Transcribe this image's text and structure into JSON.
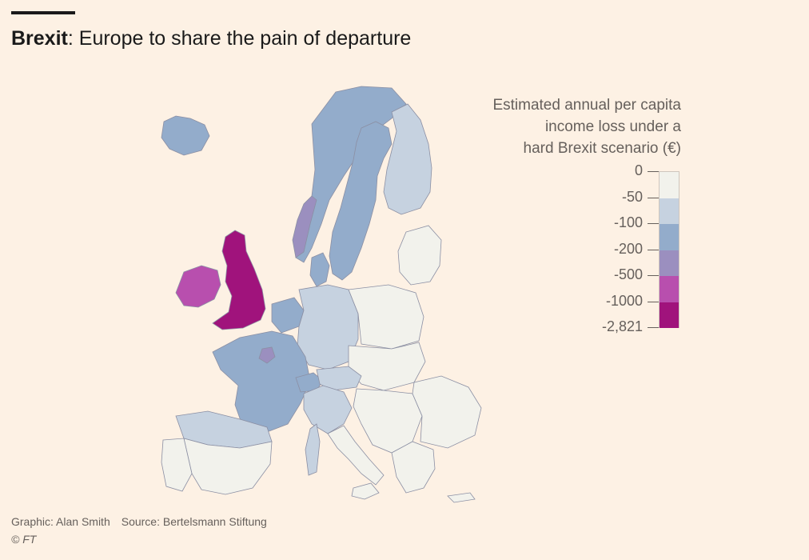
{
  "header": {
    "title_bold": "Brexit",
    "title_rest": ": Europe to share the pain of departure"
  },
  "legend": {
    "title_lines": [
      "Estimated annual per capita",
      "income loss under a",
      "hard Brexit scenario (€)"
    ],
    "breaks": [
      "0",
      "-50",
      "-100",
      "-200",
      "-500",
      "-1000",
      "-2,821"
    ],
    "colors": [
      "#f2f2ec",
      "#c6d2e0",
      "#93accb",
      "#9b8fbf",
      "#b84fae",
      "#a0137c"
    ]
  },
  "footer": {
    "graphic": "Graphic: Alan Smith",
    "source": "Source: Bertelsmann Stiftung",
    "copyright": "© FT"
  },
  "regions": [
    {
      "name": "Iceland",
      "cls": 2
    },
    {
      "name": "Ireland",
      "cls": 4
    },
    {
      "name": "United Kingdom",
      "cls": 5
    },
    {
      "name": "Norway",
      "cls": 2
    },
    {
      "name": "Norway west coast",
      "cls": 3
    },
    {
      "name": "Sweden",
      "cls": 2
    },
    {
      "name": "Finland",
      "cls": 1
    },
    {
      "name": "Denmark",
      "cls": 2
    },
    {
      "name": "Estonia / Latvia / Lithuania",
      "cls": 0
    },
    {
      "name": "Poland",
      "cls": 0
    },
    {
      "name": "Germany",
      "cls": 1
    },
    {
      "name": "Netherlands / Belgium",
      "cls": 2
    },
    {
      "name": "France",
      "cls": 2
    },
    {
      "name": "Paris region",
      "cls": 3
    },
    {
      "name": "Czechia / Slovakia / Hungary",
      "cls": 0
    },
    {
      "name": "Austria",
      "cls": 1
    },
    {
      "name": "Switzerland",
      "cls": 2
    },
    {
      "name": "Italy north",
      "cls": 1
    },
    {
      "name": "Italy south",
      "cls": 0
    },
    {
      "name": "Spain",
      "cls": 0
    },
    {
      "name": "Spain north",
      "cls": 1
    },
    {
      "name": "Portugal",
      "cls": 0
    },
    {
      "name": "Balkans",
      "cls": 0
    },
    {
      "name": "Romania / Bulgaria",
      "cls": 0
    },
    {
      "name": "Greece",
      "cls": 0
    },
    {
      "name": "Corsica / Sardinia",
      "cls": 1
    },
    {
      "name": "Sicily",
      "cls": 0
    },
    {
      "name": "Crete",
      "cls": 0
    },
    {
      "name": "Cyprus",
      "cls": 0
    }
  ]
}
